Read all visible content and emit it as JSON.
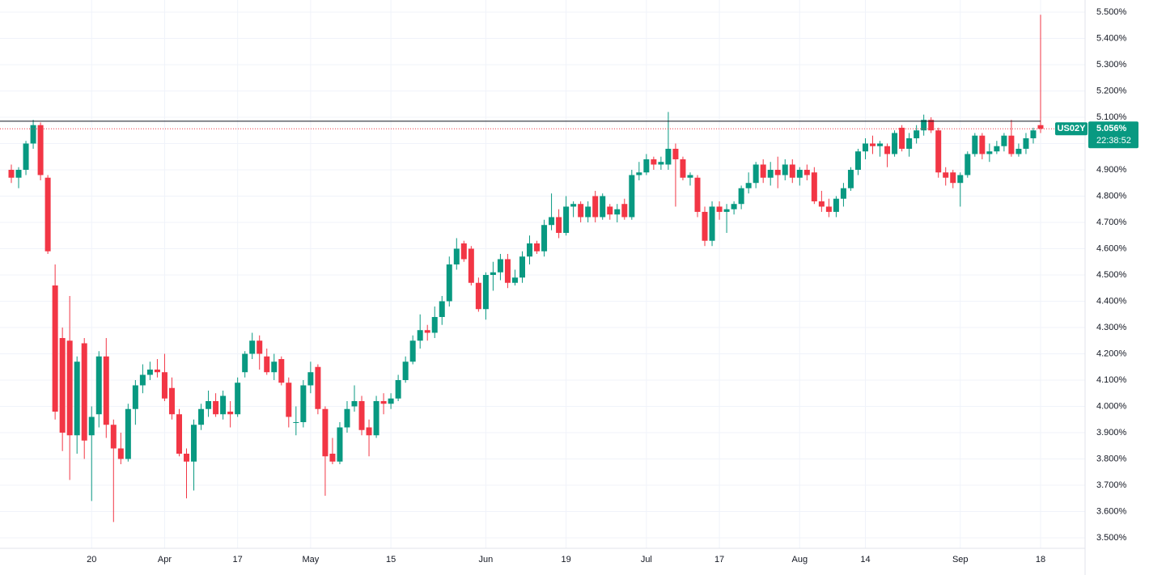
{
  "chart_data": {
    "type": "candlestick",
    "categories": [
      null,
      null,
      null,
      null,
      null,
      null,
      null,
      null,
      null,
      null,
      null,
      "20",
      null,
      null,
      null,
      null,
      null,
      null,
      null,
      null,
      null,
      "Apr",
      null,
      null,
      null,
      null,
      null,
      null,
      null,
      null,
      null,
      "17",
      null,
      null,
      null,
      null,
      null,
      null,
      null,
      null,
      null,
      "May",
      null,
      null,
      null,
      null,
      null,
      null,
      null,
      null,
      null,
      null,
      "15",
      null,
      null,
      null,
      null,
      null,
      null,
      null,
      null,
      null,
      null,
      null,
      null,
      "Jun",
      null,
      null,
      null,
      null,
      null,
      null,
      null,
      null,
      null,
      null,
      "19",
      null,
      null,
      null,
      null,
      null,
      null,
      null,
      null,
      null,
      null,
      "Jul",
      null,
      null,
      null,
      null,
      null,
      null,
      null,
      null,
      null,
      "17",
      null,
      null,
      null,
      null,
      null,
      null,
      null,
      null,
      null,
      null,
      "Aug",
      null,
      null,
      null,
      null,
      null,
      null,
      null,
      null,
      "14",
      null,
      null,
      null,
      null,
      null,
      null,
      null,
      null,
      null,
      null,
      null,
      null,
      "Sep",
      null,
      null,
      null,
      null,
      null,
      null,
      null,
      null,
      null,
      null,
      "18"
    ],
    "series": [
      {
        "name": "US02Y",
        "up_color": "#089981",
        "down_color": "#f23645",
        "open": [
          4.9,
          4.87,
          4.9,
          5.0,
          5.07,
          4.87,
          4.46,
          4.26,
          4.25,
          3.89,
          4.24,
          3.89,
          3.97,
          4.19,
          3.93,
          3.84,
          3.8,
          3.99,
          4.08,
          4.12,
          4.14,
          4.13,
          4.07,
          3.97,
          3.82,
          3.79,
          3.93,
          3.99,
          4.02,
          3.97,
          3.98,
          3.97,
          4.13,
          4.2,
          4.25,
          4.19,
          4.13,
          4.18,
          4.09,
          3.94,
          3.94,
          4.08,
          4.15,
          3.99,
          3.82,
          3.79,
          3.92,
          4.0,
          4.02,
          3.92,
          3.89,
          4.02,
          4.01,
          4.03,
          4.1,
          4.17,
          4.25,
          4.29,
          4.28,
          4.34,
          4.4,
          4.54,
          4.62,
          4.6,
          4.47,
          4.37,
          4.5,
          4.51,
          4.56,
          4.47,
          4.49,
          4.57,
          4.62,
          4.59,
          4.69,
          4.72,
          4.66,
          4.76,
          4.77,
          4.72,
          4.8,
          4.72,
          4.76,
          4.73,
          4.77,
          4.72,
          4.88,
          4.89,
          4.94,
          4.92,
          4.92,
          4.98,
          4.94,
          4.87,
          4.87,
          4.74,
          4.63,
          4.76,
          4.74,
          4.75,
          4.77,
          4.83,
          4.85,
          4.92,
          4.87,
          4.9,
          4.88,
          4.92,
          4.87,
          4.9,
          4.89,
          4.78,
          4.76,
          4.74,
          4.79,
          4.83,
          4.9,
          4.97,
          5.0,
          4.99,
          4.99,
          4.96,
          5.06,
          4.98,
          5.02,
          5.05,
          5.09,
          5.05,
          4.89,
          4.89,
          4.85,
          4.88,
          4.96,
          5.03,
          4.96,
          4.97,
          4.99,
          5.03,
          4.96,
          4.98,
          5.02,
          5.07
        ],
        "high": [
          4.92,
          4.91,
          5.01,
          5.09,
          5.08,
          4.88,
          4.54,
          4.3,
          4.42,
          4.19,
          4.26,
          4.0,
          4.21,
          4.26,
          3.95,
          3.9,
          4.01,
          4.1,
          4.16,
          4.17,
          4.18,
          4.2,
          4.11,
          3.99,
          3.84,
          3.95,
          4.01,
          4.06,
          4.05,
          4.06,
          4.02,
          4.11,
          4.21,
          4.28,
          4.27,
          4.22,
          4.2,
          4.19,
          4.11,
          4.0,
          4.1,
          4.17,
          4.16,
          4.0,
          3.88,
          3.94,
          4.02,
          4.08,
          4.04,
          3.95,
          4.04,
          4.05,
          4.05,
          4.12,
          4.19,
          4.27,
          4.35,
          4.31,
          4.38,
          4.42,
          4.57,
          4.64,
          4.63,
          4.61,
          4.49,
          4.51,
          4.55,
          4.58,
          4.58,
          4.52,
          4.59,
          4.65,
          4.63,
          4.71,
          4.81,
          4.75,
          4.8,
          4.78,
          4.78,
          4.78,
          4.82,
          4.81,
          4.77,
          4.77,
          4.79,
          4.9,
          4.93,
          4.96,
          4.95,
          4.95,
          5.12,
          5.0,
          4.95,
          4.89,
          4.88,
          4.76,
          4.78,
          4.78,
          4.77,
          4.78,
          4.84,
          4.89,
          4.93,
          4.94,
          4.93,
          4.95,
          4.94,
          4.94,
          4.91,
          4.92,
          4.91,
          4.82,
          4.79,
          4.8,
          4.85,
          4.91,
          4.98,
          5.02,
          5.03,
          5.01,
          5.0,
          5.05,
          5.07,
          5.04,
          5.07,
          5.11,
          5.1,
          5.06,
          4.91,
          4.9,
          4.89,
          4.97,
          5.04,
          5.04,
          5.0,
          5.01,
          5.04,
          5.09,
          5.0,
          5.04,
          5.06,
          5.49
        ],
        "low": [
          4.85,
          4.83,
          4.88,
          4.98,
          4.86,
          4.58,
          3.95,
          3.83,
          3.72,
          3.82,
          3.8,
          3.64,
          3.92,
          3.88,
          3.56,
          3.78,
          3.79,
          3.93,
          4.05,
          4.1,
          4.11,
          4.02,
          3.95,
          3.81,
          3.65,
          3.68,
          3.91,
          3.96,
          3.96,
          3.95,
          3.92,
          3.96,
          4.11,
          4.18,
          4.14,
          4.12,
          4.1,
          4.08,
          3.92,
          3.89,
          3.92,
          4.05,
          3.97,
          3.66,
          3.78,
          3.78,
          3.9,
          3.98,
          3.89,
          3.81,
          3.88,
          3.97,
          3.99,
          4.02,
          4.09,
          4.16,
          4.22,
          4.25,
          4.26,
          4.31,
          4.38,
          4.52,
          4.55,
          4.46,
          4.36,
          4.33,
          4.44,
          4.48,
          4.45,
          4.46,
          4.47,
          4.54,
          4.58,
          4.57,
          4.67,
          4.64,
          4.65,
          4.72,
          4.7,
          4.7,
          4.7,
          4.71,
          4.71,
          4.7,
          4.71,
          4.71,
          4.86,
          4.88,
          4.9,
          4.9,
          4.9,
          4.76,
          4.86,
          4.84,
          4.72,
          4.61,
          4.61,
          4.71,
          4.66,
          4.73,
          4.75,
          4.81,
          4.83,
          4.85,
          4.84,
          4.83,
          4.86,
          4.85,
          4.84,
          4.86,
          4.77,
          4.74,
          4.72,
          4.72,
          4.76,
          4.82,
          4.88,
          4.94,
          4.96,
          4.95,
          4.91,
          4.95,
          4.97,
          4.95,
          5.0,
          5.03,
          5.04,
          4.87,
          4.84,
          4.83,
          4.76,
          4.87,
          4.95,
          4.94,
          4.93,
          4.96,
          4.97,
          4.95,
          4.95,
          4.96,
          5.0,
          5.04
        ],
        "close": [
          4.87,
          4.9,
          5.0,
          5.07,
          4.88,
          4.59,
          3.98,
          3.9,
          3.89,
          4.17,
          3.87,
          3.96,
          4.19,
          3.93,
          3.84,
          3.8,
          3.99,
          4.08,
          4.12,
          4.14,
          4.13,
          4.03,
          3.97,
          3.82,
          3.79,
          3.93,
          3.99,
          4.02,
          3.97,
          4.04,
          3.97,
          4.09,
          4.2,
          4.25,
          4.2,
          4.13,
          4.17,
          4.09,
          3.96,
          3.94,
          4.08,
          4.13,
          3.99,
          3.81,
          3.79,
          3.92,
          3.99,
          4.02,
          3.91,
          3.89,
          4.02,
          4.01,
          4.03,
          4.1,
          4.17,
          4.25,
          4.29,
          4.28,
          4.34,
          4.4,
          4.54,
          4.6,
          4.56,
          4.47,
          4.37,
          4.5,
          4.51,
          4.56,
          4.47,
          4.49,
          4.57,
          4.62,
          4.59,
          4.69,
          4.72,
          4.66,
          4.76,
          4.77,
          4.72,
          4.76,
          4.72,
          4.8,
          4.73,
          4.75,
          4.72,
          4.88,
          4.89,
          4.94,
          4.92,
          4.93,
          4.98,
          4.94,
          4.87,
          4.88,
          4.74,
          4.63,
          4.76,
          4.74,
          4.75,
          4.77,
          4.83,
          4.85,
          4.92,
          4.87,
          4.9,
          4.88,
          4.92,
          4.87,
          4.9,
          4.88,
          4.78,
          4.76,
          4.74,
          4.79,
          4.83,
          4.9,
          4.97,
          5.0,
          4.99,
          5.0,
          4.96,
          5.04,
          4.98,
          5.02,
          5.05,
          5.09,
          5.05,
          4.89,
          4.87,
          4.85,
          4.88,
          4.96,
          5.03,
          4.96,
          4.97,
          4.99,
          5.03,
          4.96,
          4.98,
          5.02,
          5.05,
          5.056
        ]
      }
    ],
    "price_label": "5.056%",
    "countdown": "22:38:52",
    "level": 5.085,
    "level_color": "#131722",
    "ylim": [
      3.46,
      5.546
    ],
    "yticks": [
      {
        "value": 3.5,
        "label": "3.500%"
      },
      {
        "value": 3.6,
        "label": "3.600%"
      },
      {
        "value": 3.7,
        "label": "3.700%"
      },
      {
        "value": 3.8,
        "label": "3.800%"
      },
      {
        "value": 3.9,
        "label": "3.900%"
      },
      {
        "value": 4.0,
        "label": "4.000%"
      },
      {
        "value": 4.1,
        "label": "4.100%"
      },
      {
        "value": 4.2,
        "label": "4.200%"
      },
      {
        "value": 4.3,
        "label": "4.300%"
      },
      {
        "value": 4.4,
        "label": "4.400%"
      },
      {
        "value": 4.5,
        "label": "4.500%"
      },
      {
        "value": 4.6,
        "label": "4.600%"
      },
      {
        "value": 4.7,
        "label": "4.700%"
      },
      {
        "value": 4.8,
        "label": "4.800%"
      },
      {
        "value": 4.9,
        "label": "4.900%"
      },
      {
        "value": 5.0,
        "label": "5.000%"
      },
      {
        "value": 5.1,
        "label": "5.100%"
      },
      {
        "value": 5.2,
        "label": "5.200%"
      },
      {
        "value": 5.3,
        "label": "5.300%"
      },
      {
        "value": 5.4,
        "label": "5.400%"
      },
      {
        "value": 5.5,
        "label": "5.500%"
      }
    ],
    "grid": true
  }
}
